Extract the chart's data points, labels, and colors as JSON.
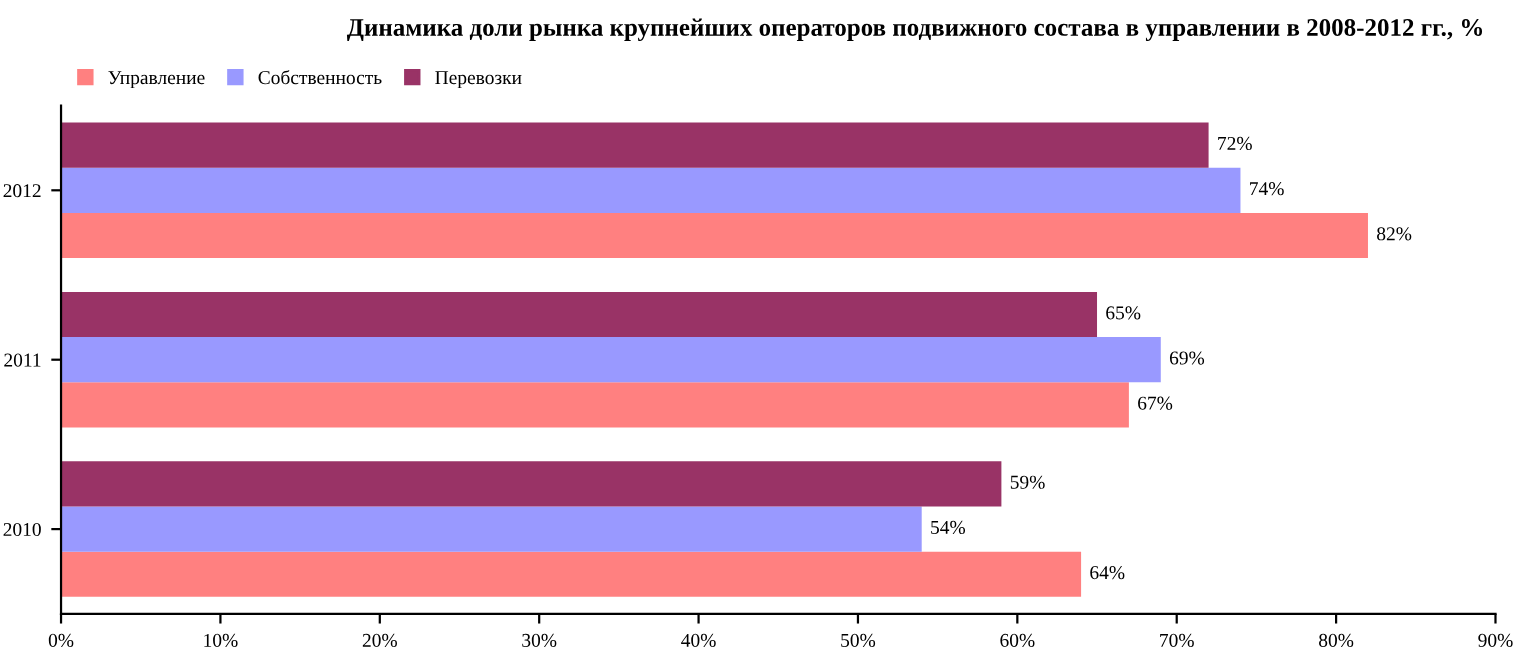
{
  "chart_data": {
    "type": "bar",
    "orientation": "horizontal",
    "title": "Динамика доли рынка крупнейших операторов подвижного состава в управлении в 2008-2012 гг., %",
    "categories": [
      "2012",
      "2011",
      "2010"
    ],
    "series": [
      {
        "name": "Управление",
        "color": "#ff8080",
        "values": [
          82,
          67,
          64
        ],
        "value_labels": [
          "82%",
          "67%",
          "64%"
        ]
      },
      {
        "name": "Собственность",
        "color": "#9999ff",
        "values": [
          74,
          69,
          54
        ],
        "value_labels": [
          "74%",
          "69%",
          "54%"
        ]
      },
      {
        "name": "Перевозки",
        "color": "#993366",
        "values": [
          72,
          65,
          59
        ],
        "value_labels": [
          "72%",
          "65%",
          "59%"
        ]
      }
    ],
    "xlim": [
      0,
      90
    ],
    "xticks": [
      {
        "value": 0,
        "label": "0%"
      },
      {
        "value": 10,
        "label": "10%"
      },
      {
        "value": 20,
        "label": "20%"
      },
      {
        "value": 30,
        "label": "30%"
      },
      {
        "value": 40,
        "label": "40%"
      },
      {
        "value": 50,
        "label": "50%"
      },
      {
        "value": 60,
        "label": "60%"
      },
      {
        "value": 70,
        "label": "70%"
      },
      {
        "value": 80,
        "label": "80%"
      },
      {
        "value": 90,
        "label": "90%"
      }
    ],
    "grid": false,
    "legend": "top left"
  }
}
